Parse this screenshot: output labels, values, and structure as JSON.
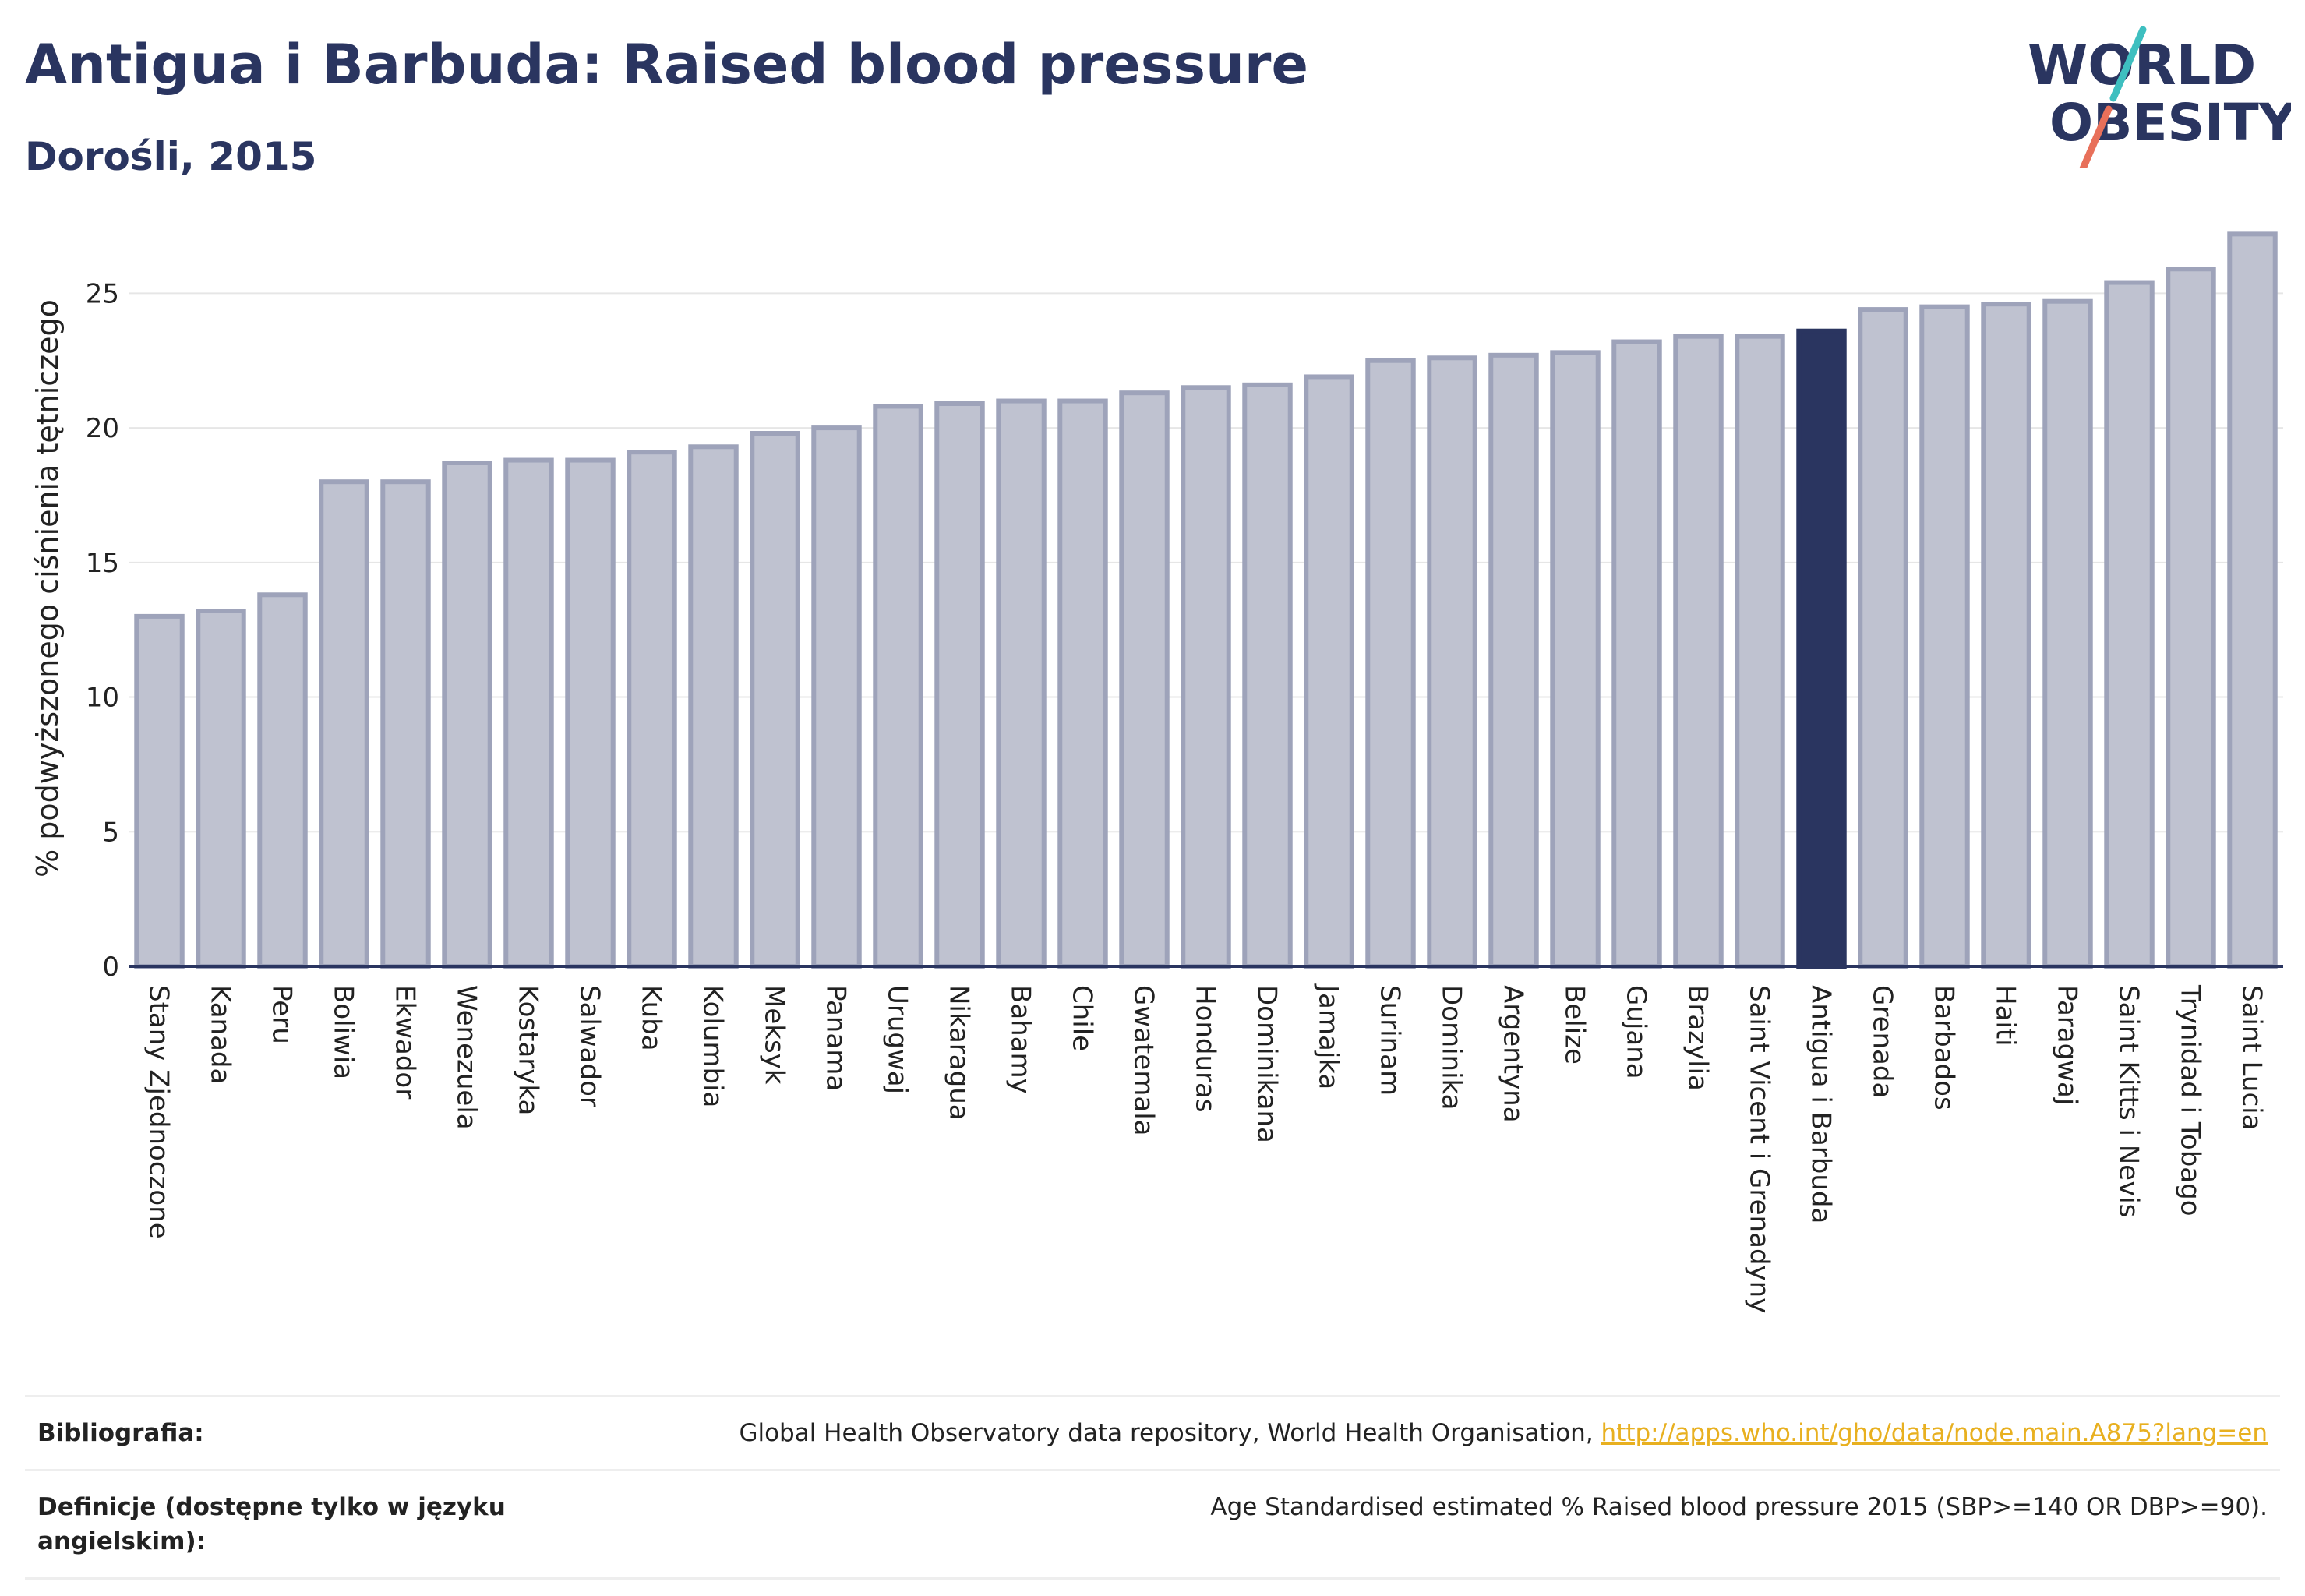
{
  "header": {
    "title": "Antigua i Barbuda: Raised blood pressure",
    "subtitle": "Dorośli, 2015"
  },
  "logo": {
    "line1": "WORLD",
    "line2": "OBESITY"
  },
  "colors": {
    "title": "#2a3560",
    "bar": "#bfc2d0",
    "bar_border": "#9ea3ba",
    "highlight": "#2a3560",
    "grid": "#e6e6e6",
    "link": "#e8b020",
    "logo_teal": "#3ebfc0",
    "logo_coral": "#e8705a"
  },
  "chart_data": {
    "type": "bar",
    "title": "Antigua i Barbuda: Raised blood pressure",
    "subtitle": "Dorośli, 2015",
    "xlabel": "",
    "ylabel": "% podwyższonego ciśnienia tętniczego",
    "ylim": [
      0,
      27.5
    ],
    "yticks": [
      0,
      5,
      10,
      15,
      20,
      25
    ],
    "grid": true,
    "highlight": "Antigua i Barbuda",
    "categories": [
      "Stany Zjednoczone",
      "Kanada",
      "Peru",
      "Boliwia",
      "Ekwador",
      "Wenezuela",
      "Kostaryka",
      "Salwador",
      "Kuba",
      "Kolumbia",
      "Meksyk",
      "Panama",
      "Urugwaj",
      "Nikaragua",
      "Bahamy",
      "Chile",
      "Gwatemala",
      "Honduras",
      "Dominikana",
      "Jamajka",
      "Surinam",
      "Dominika",
      "Argentyna",
      "Belize",
      "Gujana",
      "Brazylia",
      "Saint Vicent i Grenadyny",
      "Antigua i Barbuda",
      "Grenada",
      "Barbados",
      "Haiti",
      "Paragwaj",
      "Saint Kitts i Nevis",
      "Trynidad i Tobago",
      "Saint Lucia"
    ],
    "values": [
      13.0,
      13.2,
      13.8,
      18.0,
      18.0,
      18.7,
      18.8,
      18.8,
      19.1,
      19.3,
      19.8,
      20.0,
      20.8,
      20.9,
      21.0,
      21.0,
      21.3,
      21.5,
      21.6,
      21.9,
      22.5,
      22.6,
      22.7,
      22.8,
      23.2,
      23.4,
      23.4,
      23.6,
      24.4,
      24.5,
      24.6,
      24.7,
      25.4,
      25.9,
      27.2
    ]
  },
  "footer": {
    "bibliography_label": "Bibliografia:",
    "bibliography_text": "Global Health Observatory data repository, World Health Organisation, ",
    "bibliography_link": "http://apps.who.int/gho/data/node.main.A875?lang=en",
    "definitions_label": "Definicje (dostępne tylko w języku angielskim):",
    "definitions_text": "Age Standardised estimated % Raised blood pressure 2015 (SBP>=140 OR DBP>=90)."
  }
}
